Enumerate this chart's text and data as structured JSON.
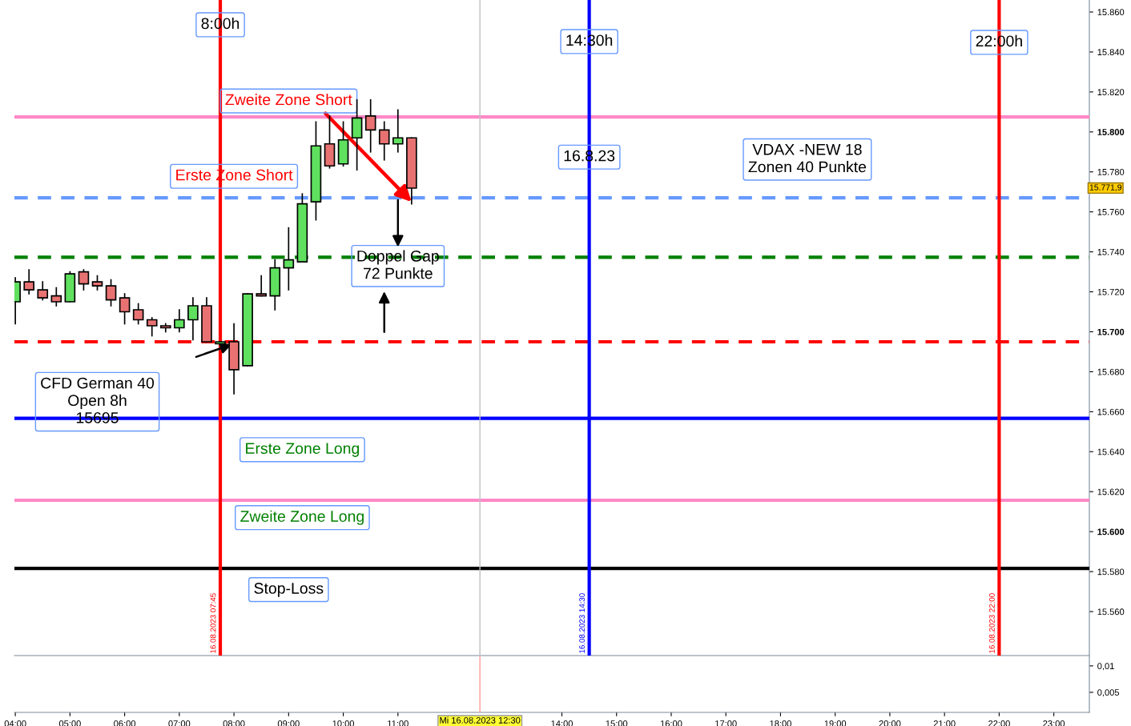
{
  "chart_data": [
    {
      "type": "candlestick",
      "x": [
        "2023-08-16T04:00",
        "2023-08-16T04:15",
        "2023-08-16T04:30",
        "2023-08-16T04:45",
        "2023-08-16T05:00",
        "2023-08-16T05:15",
        "2023-08-16T05:30",
        "2023-08-16T05:45",
        "2023-08-16T06:00",
        "2023-08-16T06:15",
        "2023-08-16T06:30",
        "2023-08-16T06:45",
        "2023-08-16T07:00",
        "2023-08-16T07:15",
        "2023-08-16T07:30",
        "2023-08-16T07:45",
        "2023-08-16T08:00",
        "2023-08-16T08:15",
        "2023-08-16T08:30",
        "2023-08-16T08:45",
        "2023-08-16T09:00",
        "2023-08-16T09:15",
        "2023-08-16T09:30",
        "2023-08-16T09:45",
        "2023-08-16T10:00",
        "2023-08-16T10:15",
        "2023-08-16T10:30",
        "2023-08-16T10:45",
        "2023-08-16T11:00",
        "2023-08-16T11:15"
      ],
      "ohlc": [
        [
          15715,
          15727,
          15704,
          15725
        ],
        [
          15725,
          15731,
          15719,
          15721
        ],
        [
          15721,
          15725,
          15716,
          15717
        ],
        [
          15718,
          15722,
          15713,
          15715
        ],
        [
          15715,
          15730,
          15715,
          15729
        ],
        [
          15730,
          15731,
          15721,
          15724
        ],
        [
          15725,
          15728,
          15721,
          15723
        ],
        [
          15723,
          15726,
          15713,
          15716
        ],
        [
          15717,
          15719,
          15704,
          15710
        ],
        [
          15711,
          15714,
          15704,
          15706
        ],
        [
          15706,
          15707,
          15698,
          15703
        ],
        [
          15703,
          15704,
          15700,
          15702
        ],
        [
          15702,
          15711,
          15700,
          15706
        ],
        [
          15706,
          15717,
          15696,
          15713
        ],
        [
          15713,
          15717,
          15695,
          15695
        ],
        [
          15694,
          15695,
          15694,
          15695
        ],
        [
          15695,
          15704,
          15669,
          15681
        ],
        [
          15683,
          15719,
          15683,
          15719
        ],
        [
          15719,
          15728,
          15718,
          15718
        ],
        [
          15718,
          15736,
          15711,
          15732
        ],
        [
          15732,
          15752,
          15721,
          15736
        ],
        [
          15735,
          15769,
          15735,
          15764
        ],
        [
          15765,
          15805,
          15756,
          15793
        ],
        [
          15794,
          15808,
          15782,
          15783
        ],
        [
          15784,
          15805,
          15783,
          15796
        ],
        [
          15797,
          15816,
          15781,
          15807
        ],
        [
          15808,
          15816,
          15790,
          15801
        ],
        [
          15801,
          15805,
          15786,
          15794
        ],
        [
          15794,
          15811,
          15790,
          15797
        ],
        [
          15797,
          15797,
          15764,
          15771.9
        ]
      ],
      "xlim": [
        "2023-08-16T03:59",
        "2023-08-16T23:39"
      ],
      "ylim": [
        15538,
        15866
      ],
      "yticks": [
        {
          "value": 15860,
          "label": "15.860"
        },
        {
          "value": 15840,
          "label": "15.840"
        },
        {
          "value": 15820,
          "label": "15.820"
        },
        {
          "value": 15800,
          "label": "15.800"
        },
        {
          "value": 15780,
          "label": "15.780"
        },
        {
          "value": 15760,
          "label": "15.760"
        },
        {
          "value": 15740,
          "label": "15.740"
        },
        {
          "value": 15720,
          "label": "15.720"
        },
        {
          "value": 15700,
          "label": "15.700"
        },
        {
          "value": 15680,
          "label": "15.680"
        },
        {
          "value": 15660,
          "label": "15.660"
        },
        {
          "value": 15640,
          "label": "15.640"
        },
        {
          "value": 15620,
          "label": "15.620"
        },
        {
          "value": 15600,
          "label": "15.600"
        },
        {
          "value": 15580,
          "label": "15.580"
        },
        {
          "value": 15560,
          "label": "15.560"
        }
      ],
      "tick_labels": "y",
      "grid": false,
      "ref_lines": [
        {
          "axis": "y",
          "value": 15807.5,
          "color": "#ff88c8",
          "line_style": "solid"
        },
        {
          "axis": "y",
          "value": 15767,
          "color": "#6699ff",
          "line_style": "dashed"
        },
        {
          "axis": "y",
          "value": 15737.3,
          "color": "#008000",
          "line_style": "dashed"
        },
        {
          "axis": "y",
          "value": 15695,
          "color": "#ff0000",
          "line_style": "dashed"
        },
        {
          "axis": "y",
          "value": 15656.7,
          "color": "#0000ff",
          "line_style": "solid"
        },
        {
          "axis": "y",
          "value": 15615.7,
          "color": "#ff88c8",
          "line_style": "solid"
        },
        {
          "axis": "y",
          "value": 15581.6,
          "color": "#000000",
          "line_style": "solid"
        },
        {
          "axis": "x",
          "value": "2023-08-16T12:30",
          "color": "#c0c0c0",
          "line_style": "solid"
        },
        {
          "axis": "x",
          "value": "2023-08-16T07:45",
          "label": "16.08.2023 07:45",
          "color": "#ff0000",
          "line_style": "solid"
        },
        {
          "axis": "x",
          "value": "2023-08-16T14:30",
          "label": "16.08.2023 14:30",
          "color": "#0000ff",
          "line_style": "solid"
        },
        {
          "axis": "x",
          "value": "2023-08-16T22:00",
          "label": "16.08.2023 22:00",
          "color": "#ff0000",
          "line_style": "solid"
        }
      ],
      "annotations": [
        "8:00h",
        "14:30h",
        "22:00h",
        {
          "text": "Zweite Zone Short",
          "x": "2023-08-16T11:15",
          "y": 15765
        },
        "Erste Zone Short",
        "16.8.23",
        "VDAX -NEW 18\nZonen 40 Punkte",
        "Doppel Gap\n72 Punkte",
        "CFD German 40\nOpen 8h\n15695",
        "Erste Zone Long",
        "Zweite Zone Long",
        "Stop-Loss",
        "15.771,9"
      ]
    },
    {
      "type": "line",
      "xlim": [
        "2023-08-16T03:59",
        "2023-08-16T23:39"
      ],
      "ylim": [
        0.0012,
        0.0118
      ],
      "yticks": [
        {
          "value": 0.01,
          "label": "0,01"
        },
        {
          "value": 0.005,
          "label": "0,005"
        }
      ],
      "xticks": [
        {
          "value": "2023-08-16T04:00",
          "label": "04:00"
        },
        {
          "value": "2023-08-16T05:00",
          "label": "05:00"
        },
        {
          "value": "2023-08-16T06:00",
          "label": "06:00"
        },
        {
          "value": "2023-08-16T07:00",
          "label": "07:00"
        },
        {
          "value": "2023-08-16T08:00",
          "label": "08:00"
        },
        {
          "value": "2023-08-16T09:00",
          "label": "09:00"
        },
        {
          "value": "2023-08-16T10:00",
          "label": "10:00"
        },
        {
          "value": "2023-08-16T11:00",
          "label": "11:00"
        },
        {
          "value": "2023-08-16T14:00",
          "label": "14:00"
        },
        {
          "value": "2023-08-16T15:00",
          "label": "15:00"
        },
        {
          "value": "2023-08-16T16:00",
          "label": "16:00"
        },
        {
          "value": "2023-08-16T17:00",
          "label": "17:00"
        },
        {
          "value": "2023-08-16T18:00",
          "label": "18:00"
        },
        {
          "value": "2023-08-16T19:00",
          "label": "19:00"
        },
        {
          "value": "2023-08-16T20:00",
          "label": "20:00"
        },
        {
          "value": "2023-08-16T21:00",
          "label": "21:00"
        },
        {
          "value": "2023-08-16T22:00",
          "label": "22:00"
        },
        {
          "value": "2023-08-16T23:00",
          "label": "23:00"
        }
      ],
      "ref_lines": [
        {
          "axis": "x",
          "value": "2023-08-16T12:30",
          "label": "Mi 16.08.2023 12:30",
          "color": "#ff9999",
          "line_style": "solid"
        }
      ],
      "grid": false
    }
  ]
}
